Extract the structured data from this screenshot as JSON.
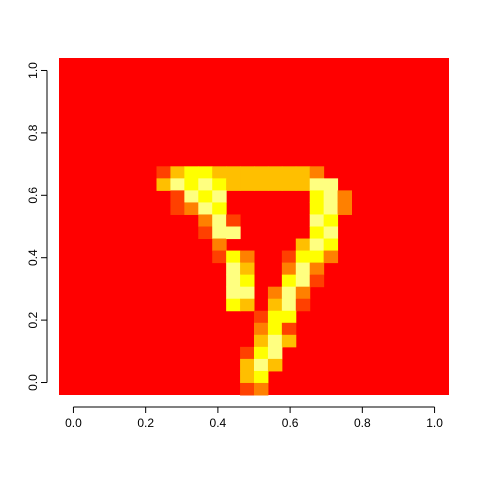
{
  "chart_data": {
    "type": "heatmap",
    "title": "",
    "xlabel": "",
    "ylabel": "",
    "xlim": [
      0,
      1
    ],
    "ylim": [
      0,
      1
    ],
    "x_ticks": [
      "0.0",
      "0.2",
      "0.4",
      "0.6",
      "0.8",
      "1.0"
    ],
    "y_ticks": [
      "0.0",
      "0.2",
      "0.4",
      "0.6",
      "0.8",
      "1.0"
    ],
    "grid_size": [
      28,
      28
    ],
    "palette": "heat.colors",
    "colors": [
      "#FF0000",
      "#FF4000",
      "#FF8000",
      "#FFBF00",
      "#FFFF00",
      "#FFFF80"
    ],
    "value_range": [
      0,
      5
    ],
    "background_value": 0,
    "cells": [
      [
        7,
        18,
        1
      ],
      [
        8,
        18,
        3
      ],
      [
        9,
        18,
        4
      ],
      [
        10,
        18,
        4
      ],
      [
        11,
        18,
        3
      ],
      [
        12,
        18,
        3
      ],
      [
        13,
        18,
        3
      ],
      [
        14,
        18,
        3
      ],
      [
        15,
        18,
        3
      ],
      [
        16,
        18,
        3
      ],
      [
        17,
        18,
        3
      ],
      [
        18,
        18,
        2
      ],
      [
        7,
        17,
        3
      ],
      [
        8,
        17,
        5
      ],
      [
        9,
        17,
        4
      ],
      [
        10,
        17,
        5
      ],
      [
        11,
        17,
        4
      ],
      [
        12,
        17,
        3
      ],
      [
        13,
        17,
        3
      ],
      [
        14,
        17,
        3
      ],
      [
        15,
        17,
        3
      ],
      [
        16,
        17,
        3
      ],
      [
        17,
        17,
        3
      ],
      [
        18,
        17,
        5
      ],
      [
        19,
        17,
        5
      ],
      [
        8,
        16,
        1
      ],
      [
        9,
        16,
        5
      ],
      [
        10,
        16,
        4
      ],
      [
        11,
        16,
        5
      ],
      [
        18,
        16,
        4
      ],
      [
        19,
        16,
        5
      ],
      [
        20,
        16,
        2
      ],
      [
        8,
        15,
        1
      ],
      [
        9,
        15,
        2
      ],
      [
        10,
        15,
        5
      ],
      [
        11,
        15,
        4
      ],
      [
        18,
        15,
        4
      ],
      [
        19,
        15,
        5
      ],
      [
        20,
        15,
        2
      ],
      [
        10,
        14,
        2
      ],
      [
        11,
        14,
        5
      ],
      [
        12,
        14,
        1
      ],
      [
        18,
        14,
        5
      ],
      [
        19,
        14,
        4
      ],
      [
        10,
        13,
        1
      ],
      [
        11,
        13,
        5
      ],
      [
        12,
        13,
        5
      ],
      [
        18,
        13,
        4
      ],
      [
        19,
        13,
        5
      ],
      [
        11,
        12,
        2
      ],
      [
        12,
        13,
        5
      ],
      [
        17,
        12,
        3
      ],
      [
        18,
        12,
        5
      ],
      [
        19,
        12,
        4
      ],
      [
        11,
        11,
        1
      ],
      [
        12,
        11,
        4
      ],
      [
        13,
        11,
        2
      ],
      [
        16,
        11,
        1
      ],
      [
        17,
        11,
        4
      ],
      [
        18,
        11,
        4
      ],
      [
        19,
        11,
        2
      ],
      [
        12,
        10,
        5
      ],
      [
        13,
        10,
        3
      ],
      [
        16,
        10,
        2
      ],
      [
        17,
        10,
        5
      ],
      [
        18,
        10,
        2
      ],
      [
        12,
        9,
        5
      ],
      [
        13,
        9,
        4
      ],
      [
        16,
        9,
        4
      ],
      [
        17,
        9,
        5
      ],
      [
        18,
        9,
        1
      ],
      [
        12,
        8,
        5
      ],
      [
        13,
        8,
        5
      ],
      [
        15,
        8,
        2
      ],
      [
        16,
        8,
        5
      ],
      [
        17,
        8,
        2
      ],
      [
        12,
        7,
        4
      ],
      [
        13,
        7,
        3
      ],
      [
        15,
        7,
        3
      ],
      [
        16,
        7,
        5
      ],
      [
        17,
        7,
        1
      ],
      [
        14,
        6,
        1
      ],
      [
        15,
        6,
        4
      ],
      [
        16,
        6,
        4
      ],
      [
        14,
        5,
        2
      ],
      [
        15,
        5,
        4
      ],
      [
        16,
        5,
        1
      ],
      [
        14,
        4,
        3
      ],
      [
        15,
        4,
        5
      ],
      [
        16,
        4,
        3
      ],
      [
        13,
        3,
        1
      ],
      [
        14,
        3,
        4
      ],
      [
        15,
        3,
        5
      ],
      [
        13,
        2,
        3
      ],
      [
        14,
        2,
        5
      ],
      [
        15,
        2,
        3
      ],
      [
        13,
        1,
        3
      ],
      [
        14,
        1,
        4
      ],
      [
        13,
        0,
        1
      ],
      [
        14,
        0,
        2
      ]
    ]
  }
}
